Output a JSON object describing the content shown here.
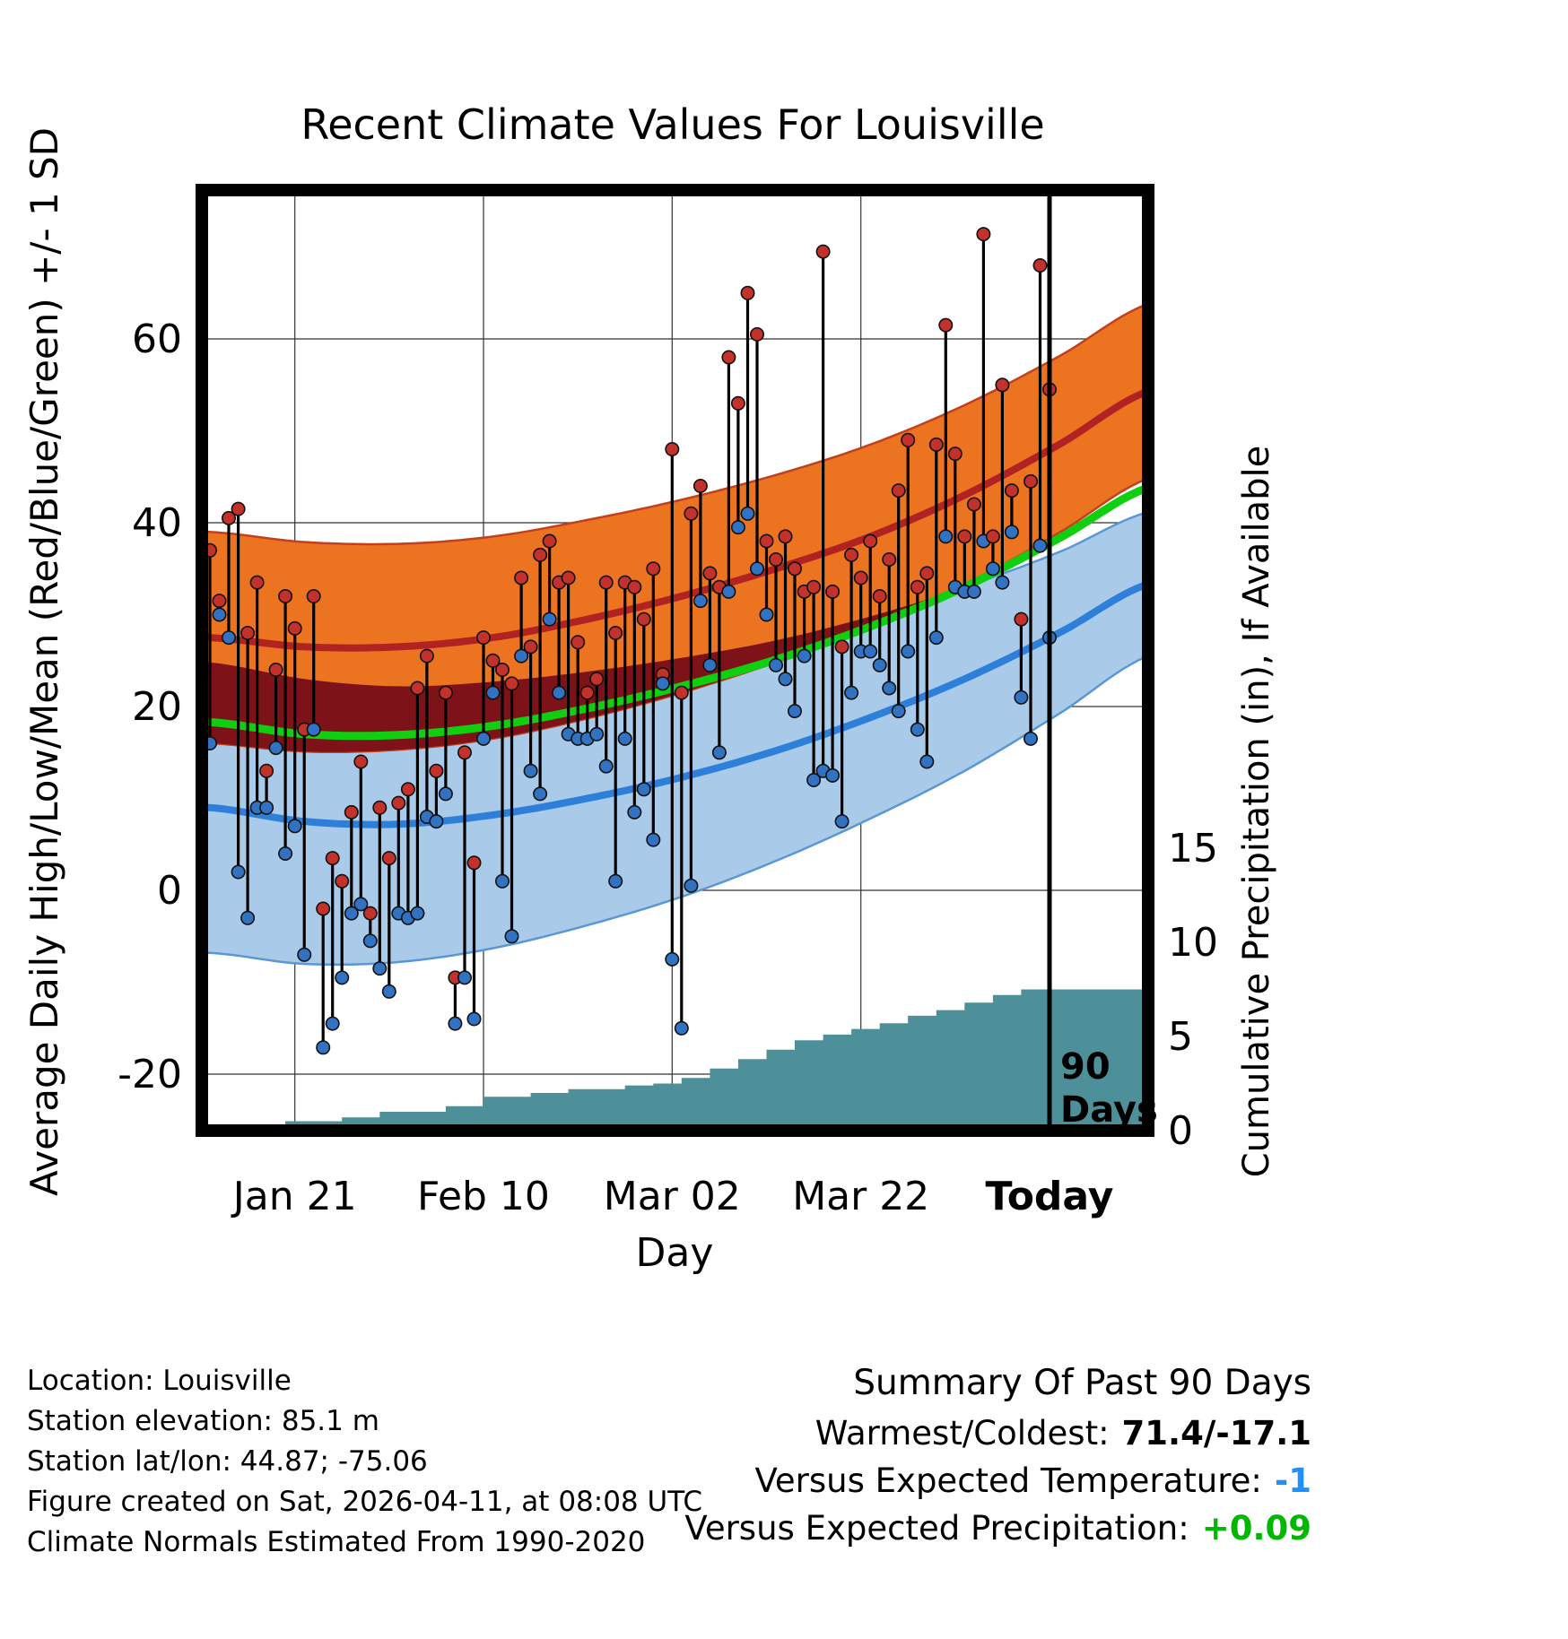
{
  "title": "Recent Climate Values For Louisville",
  "footer": {
    "location": "Location: Louisville",
    "elevation": "Station elevation: 85.1 m",
    "latlon": "Station lat/lon: 44.87; -75.06",
    "created": "Figure created on Sat, 2026-04-11, at 08:08 UTC",
    "normals_note": "Climate Normals Estimated From 1990-2020"
  },
  "summary": {
    "title": "Summary Of Past 90 Days",
    "warmest_coldest_label": "Warmest/Coldest:",
    "warmest_coldest_value": "71.4/-17.1",
    "vs_temp_label": "Versus Expected Temperature:",
    "vs_temp_value": "-1",
    "vs_precip_label": "Versus Expected Precipitation:",
    "vs_precip_value": "+0.09"
  },
  "chart_data": {
    "type": "line",
    "title": "Recent Climate Values For Louisville",
    "xlabel": "Day",
    "ylabel_left": "Average Daily High/Low/Mean (Red/Blue/Green) +/- 1 SD",
    "ylabel_right": "Cumulative Precipitation (in), If Available",
    "x_ticks": [
      {
        "label": "Jan 21",
        "day": 9,
        "bold": false
      },
      {
        "label": "Feb 10",
        "day": 29,
        "bold": false
      },
      {
        "label": "Mar 02",
        "day": 49,
        "bold": false
      },
      {
        "label": "Mar 22",
        "day": 69,
        "bold": false
      },
      {
        "label": "Today",
        "day": 89,
        "bold": true
      }
    ],
    "yticks_left": [
      -20,
      0,
      20,
      40,
      60
    ],
    "yticks_right": [
      0,
      5,
      10,
      15
    ],
    "ylim_left": [
      -26,
      76
    ],
    "ylim_right": [
      0,
      15
    ],
    "n_days": 90,
    "annotation": {
      "line1": "90",
      "line2": "Days",
      "day": 89
    },
    "normals": {
      "days": [
        0,
        10,
        20,
        30,
        40,
        50,
        60,
        70,
        80,
        90,
        100
      ],
      "high_mean": [
        27.5,
        26.5,
        26.5,
        27.5,
        29.5,
        32,
        35,
        38.5,
        43,
        48.5,
        54.5
      ],
      "high_sd": [
        11.5,
        11.4,
        11.2,
        11,
        10.8,
        10.5,
        10.2,
        10,
        9.8,
        9.6,
        9.5
      ],
      "low_mean": [
        9,
        7.5,
        7.2,
        8.2,
        10,
        12.3,
        15.2,
        18.8,
        23,
        28,
        33.5
      ],
      "low_sd": [
        15.8,
        15.5,
        15,
        14.5,
        13.8,
        13,
        12,
        11,
        10,
        8.8,
        7.8
      ],
      "mean": [
        18.3,
        17,
        16.9,
        17.9,
        19.8,
        22.2,
        25.1,
        28.7,
        33,
        38.3,
        44
      ]
    },
    "daily": {
      "high": [
        37,
        31.5,
        40.5,
        41.5,
        28,
        33.5,
        13,
        24,
        32,
        28.5,
        17.5,
        32,
        -2,
        3.5,
        1,
        8.5,
        14,
        -2.5,
        9,
        3.5,
        9.5,
        11,
        22,
        25.5,
        13,
        21.5,
        -9.5,
        15,
        3,
        27.5,
        25,
        24,
        22.5,
        34,
        26.5,
        36.5,
        38,
        33.5,
        34,
        27,
        21.5,
        23,
        33.5,
        28,
        33.5,
        33,
        29.5,
        35,
        23.5,
        48,
        21.5,
        41,
        44,
        34.5,
        33,
        58,
        53,
        65,
        60.5,
        38,
        36,
        38.5,
        35,
        32.5,
        33,
        69.5,
        32.5,
        26.5,
        36.5,
        34,
        38,
        32,
        36,
        43.5,
        49,
        33,
        34.5,
        48.5,
        61.5,
        47.5,
        38.5,
        42,
        71.4,
        38.5,
        55,
        43.5,
        29.5,
        44.5,
        68,
        54.5
      ],
      "low": [
        16,
        30,
        27.5,
        2,
        -3,
        9,
        9,
        15.5,
        4,
        7,
        -7,
        17.5,
        -17.1,
        -14.5,
        -9.5,
        -2.5,
        -1.5,
        -5.5,
        -8.5,
        -11,
        -2.5,
        -3,
        -2.5,
        8,
        7.5,
        10.5,
        -14.5,
        -9.5,
        -14,
        16.5,
        21.5,
        1,
        -5,
        25.5,
        13,
        10.5,
        29.5,
        21.5,
        17,
        16.5,
        16.5,
        17,
        13.5,
        1,
        16.5,
        8.5,
        11,
        5.5,
        22.5,
        -7.5,
        -15,
        0.5,
        31.5,
        24.5,
        15,
        32.5,
        39.5,
        41,
        35,
        30,
        24.5,
        23,
        19.5,
        25.5,
        12,
        13,
        12.5,
        7.5,
        21.5,
        26,
        26,
        24.5,
        22,
        19.5,
        26,
        17.5,
        14,
        27.5,
        38.5,
        33,
        32.5,
        32.5,
        38,
        35,
        33.5,
        39,
        21,
        16.5,
        37.5,
        27.5
      ]
    },
    "cum_precip": [
      0.3,
      0.3,
      0.3,
      0.3,
      0.3,
      0.3,
      0.3,
      0.3,
      0.5,
      0.5,
      0.5,
      0.5,
      0.5,
      0.5,
      0.7,
      0.7,
      0.7,
      0.7,
      1.0,
      1.0,
      1.0,
      1.0,
      1.0,
      1.0,
      1.0,
      1.3,
      1.3,
      1.3,
      1.3,
      1.8,
      1.8,
      1.8,
      1.8,
      1.8,
      2.0,
      2.0,
      2.0,
      2.0,
      2.2,
      2.2,
      2.2,
      2.2,
      2.2,
      2.2,
      2.4,
      2.4,
      2.4,
      2.5,
      2.5,
      2.5,
      2.8,
      2.8,
      2.8,
      3.3,
      3.3,
      3.3,
      3.8,
      3.8,
      3.8,
      4.3,
      4.3,
      4.3,
      4.8,
      4.8,
      4.8,
      5.1,
      5.1,
      5.1,
      5.4,
      5.4,
      5.4,
      5.7,
      5.7,
      5.7,
      6.1,
      6.1,
      6.1,
      6.4,
      6.4,
      6.4,
      6.8,
      6.8,
      6.8,
      7.2,
      7.2,
      7.2,
      7.5,
      7.5,
      7.5,
      7.5
    ],
    "colors": {
      "high_band": "#EC7420",
      "high_line": "#B22222",
      "low_band": "#A9CBE9",
      "low_line": "#2E7FD9",
      "overlap_band": "#7D1318",
      "mean_line": "#10CE10",
      "precip_fill": "#4E9099",
      "point_high": "#C3322A",
      "point_low": "#3173C2",
      "connector": "#000000",
      "grid": "#333333",
      "vs_temp_value_color": "#1E90FF",
      "vs_precip_value_color": "#00B800"
    }
  }
}
